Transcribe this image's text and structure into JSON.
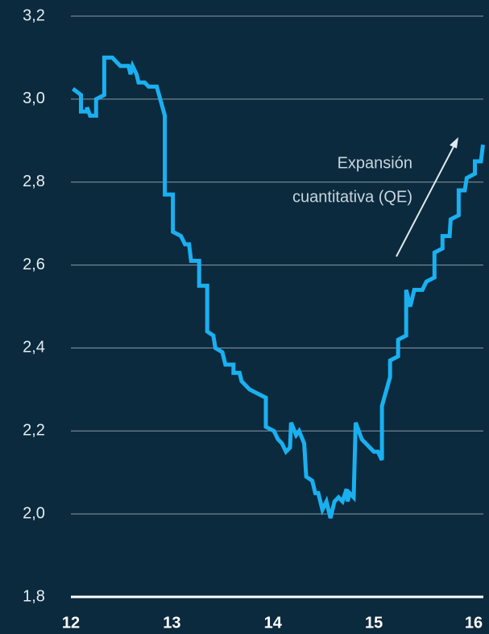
{
  "chart_data": {
    "type": "line",
    "annotation": [
      "Expansión",
      "cuantitativa (QE)"
    ],
    "xlim": [
      12,
      16.1
    ],
    "xticks": [
      12,
      13,
      14,
      15,
      16
    ],
    "ylim": [
      1.8,
      3.2
    ],
    "yticks": [
      {
        "value": 1.8,
        "label": "1,8"
      },
      {
        "value": 2.0,
        "label": "2,0"
      },
      {
        "value": 2.2,
        "label": "2,2"
      },
      {
        "value": 2.4,
        "label": "2,4"
      },
      {
        "value": 2.6,
        "label": "2,6"
      },
      {
        "value": 2.8,
        "label": "2,8"
      },
      {
        "value": 3.0,
        "label": "3,0"
      },
      {
        "value": 3.2,
        "label": "3,2"
      }
    ],
    "grid": true,
    "series": [
      {
        "color": "#1ab0f0",
        "x": [
          12.02,
          12.1,
          12.1,
          12.16,
          12.16,
          12.19,
          12.25,
          12.25,
          12.33,
          12.33,
          12.41,
          12.45,
          12.49,
          12.57,
          12.59,
          12.61,
          12.65,
          12.67,
          12.73,
          12.77,
          12.85,
          12.93,
          12.93,
          13.01,
          13.01,
          13.09,
          13.13,
          13.17,
          13.19,
          13.27,
          13.27,
          13.35,
          13.35,
          13.41,
          13.43,
          13.5,
          13.53,
          13.61,
          13.61,
          13.67,
          13.69,
          13.73,
          13.77,
          13.85,
          13.93,
          13.93,
          14.01,
          14.05,
          14.09,
          14.13,
          14.17,
          14.18,
          14.23,
          14.26,
          14.31,
          14.33,
          14.39,
          14.42,
          14.45,
          14.49,
          14.53,
          14.57,
          14.61,
          14.65,
          14.69,
          14.73,
          14.74,
          14.76,
          14.8,
          14.82,
          14.88,
          14.92,
          14.96,
          15.0,
          15.04,
          15.08,
          15.08,
          15.16,
          15.16,
          15.24,
          15.24,
          15.32,
          15.32,
          15.36,
          15.4,
          15.48,
          15.52,
          15.6,
          15.6,
          15.68,
          15.68,
          15.75,
          15.76,
          15.84,
          15.84,
          15.9,
          15.92,
          16.0,
          16.0,
          16.06,
          16.08
        ],
        "values": [
          3.025,
          3.01,
          2.97,
          2.97,
          2.98,
          2.96,
          2.96,
          3.0,
          3.01,
          3.1,
          3.1,
          3.09,
          3.08,
          3.08,
          3.06,
          3.08,
          3.06,
          3.04,
          3.04,
          3.03,
          3.03,
          2.96,
          2.77,
          2.77,
          2.68,
          2.67,
          2.65,
          2.65,
          2.61,
          2.61,
          2.55,
          2.55,
          2.44,
          2.43,
          2.4,
          2.39,
          2.36,
          2.36,
          2.34,
          2.34,
          2.32,
          2.31,
          2.3,
          2.29,
          2.28,
          2.21,
          2.2,
          2.18,
          2.17,
          2.15,
          2.16,
          2.22,
          2.19,
          2.2,
          2.17,
          2.09,
          2.08,
          2.05,
          2.05,
          2.01,
          2.03,
          1.99,
          2.03,
          2.04,
          2.03,
          2.06,
          2.03,
          2.05,
          2.04,
          2.22,
          2.18,
          2.17,
          2.16,
          2.15,
          2.15,
          2.13,
          2.26,
          2.33,
          2.37,
          2.38,
          2.42,
          2.43,
          2.54,
          2.5,
          2.54,
          2.54,
          2.56,
          2.57,
          2.63,
          2.64,
          2.67,
          2.67,
          2.71,
          2.72,
          2.78,
          2.78,
          2.81,
          2.82,
          2.85,
          2.85,
          2.89
        ]
      }
    ]
  }
}
